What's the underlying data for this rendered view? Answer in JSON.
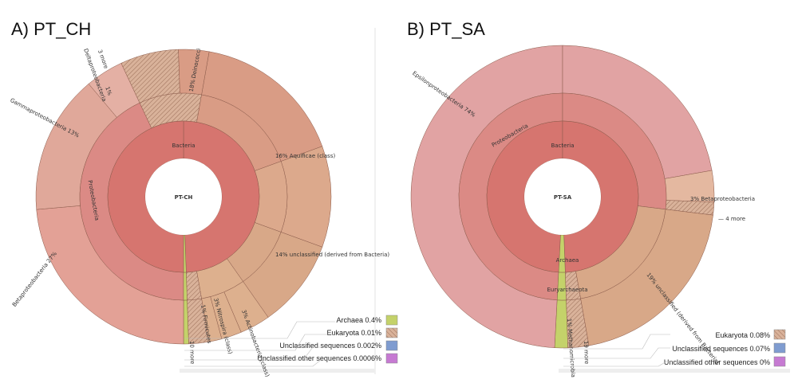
{
  "chart_data": [
    {
      "type": "pie",
      "subtype": "krona-sunburst",
      "panel_title": "A) PT_CH",
      "center": "PT-CH",
      "rings": [
        {
          "label": "Bacteria",
          "level": 1
        },
        {
          "label": "Proteobacteria",
          "level": 2
        }
      ],
      "slices": [
        {
          "label": "Deinococci",
          "percent_label": "18%",
          "value": 18
        },
        {
          "label": "Aquificae (class)",
          "percent_label": "16%",
          "value": 16
        },
        {
          "label": "unclassified (derived from Bacteria)",
          "percent_label": "14%",
          "value": 14
        },
        {
          "label": "Actinobacteria (class)",
          "percent_label": "3%",
          "value": 3
        },
        {
          "label": "Nitrospira (class)",
          "percent_label": "3%",
          "value": 3
        },
        {
          "label": "Firmicutes",
          "percent_label": "1%",
          "value": 1
        },
        {
          "label": "Betaproteobacteria",
          "percent_label": "27%",
          "value": 27
        },
        {
          "label": "Gammaproteobacteria",
          "percent_label": "13%",
          "value": 13
        },
        {
          "label": "Deltaproteobacteria",
          "percent_label": "1%",
          "value": 1
        }
      ],
      "more_labels": [
        "3 more",
        "10 more"
      ],
      "legend": [
        {
          "label": "Archaea 0.4%",
          "color": "#c4d26a"
        },
        {
          "label": "Eukaryota 0.01%",
          "color": "#4fb870"
        },
        {
          "label": "Unclassified sequences 0.002%",
          "color": "#7f9cd0"
        },
        {
          "label": "Unclassified other sequences 0.0006%",
          "color": "#c67ad2"
        }
      ]
    },
    {
      "type": "pie",
      "subtype": "krona-sunburst",
      "panel_title": "B) PT_SA",
      "center": "PT-SA",
      "rings": [
        {
          "label": "Bacteria",
          "level": 1
        },
        {
          "label": "Proteobacteria",
          "level": 2
        },
        {
          "label": "Archaea",
          "level": 1
        },
        {
          "label": "Euryarchaeota",
          "level": 2
        }
      ],
      "slices": [
        {
          "label": "Epsilonproteobacteria",
          "percent_label": "74%",
          "value": 74
        },
        {
          "label": "Betaproteobacteria",
          "percent_label": "3%",
          "value": 3
        },
        {
          "label": "unclassified (derived from Bacteria)",
          "percent_label": "19%",
          "value": 19
        },
        {
          "label": "Methanomicrobia",
          "percent_label": "1%",
          "value": 1
        }
      ],
      "more_labels": [
        "4 more",
        "19 more"
      ],
      "legend": [
        {
          "label": "Eukaryota 0.08%",
          "color": "#4fb870"
        },
        {
          "label": "Unclassified sequences 0.07%",
          "color": "#7f9cd0"
        },
        {
          "label": "Unclassified other sequences 0%",
          "color": "#c67ad2"
        }
      ]
    }
  ],
  "colors": {
    "bacteria_core": "#d6756f",
    "proteo_ring": "#db8a85",
    "beta_a": "#e3a196",
    "gamma_a": "#e0a89a",
    "delta_a": "#e4b0a4",
    "deino": "#d99c85",
    "aquif": "#dca98c",
    "unclass": "#d8a888",
    "small_orange": "#ddb08e",
    "epsilon_b": "#e1a3a3",
    "beta_b": "#e4b8a0",
    "unclass_b": "#d8a888",
    "archaea_green": "#c4d26a",
    "hatched": "#c9a28a"
  }
}
